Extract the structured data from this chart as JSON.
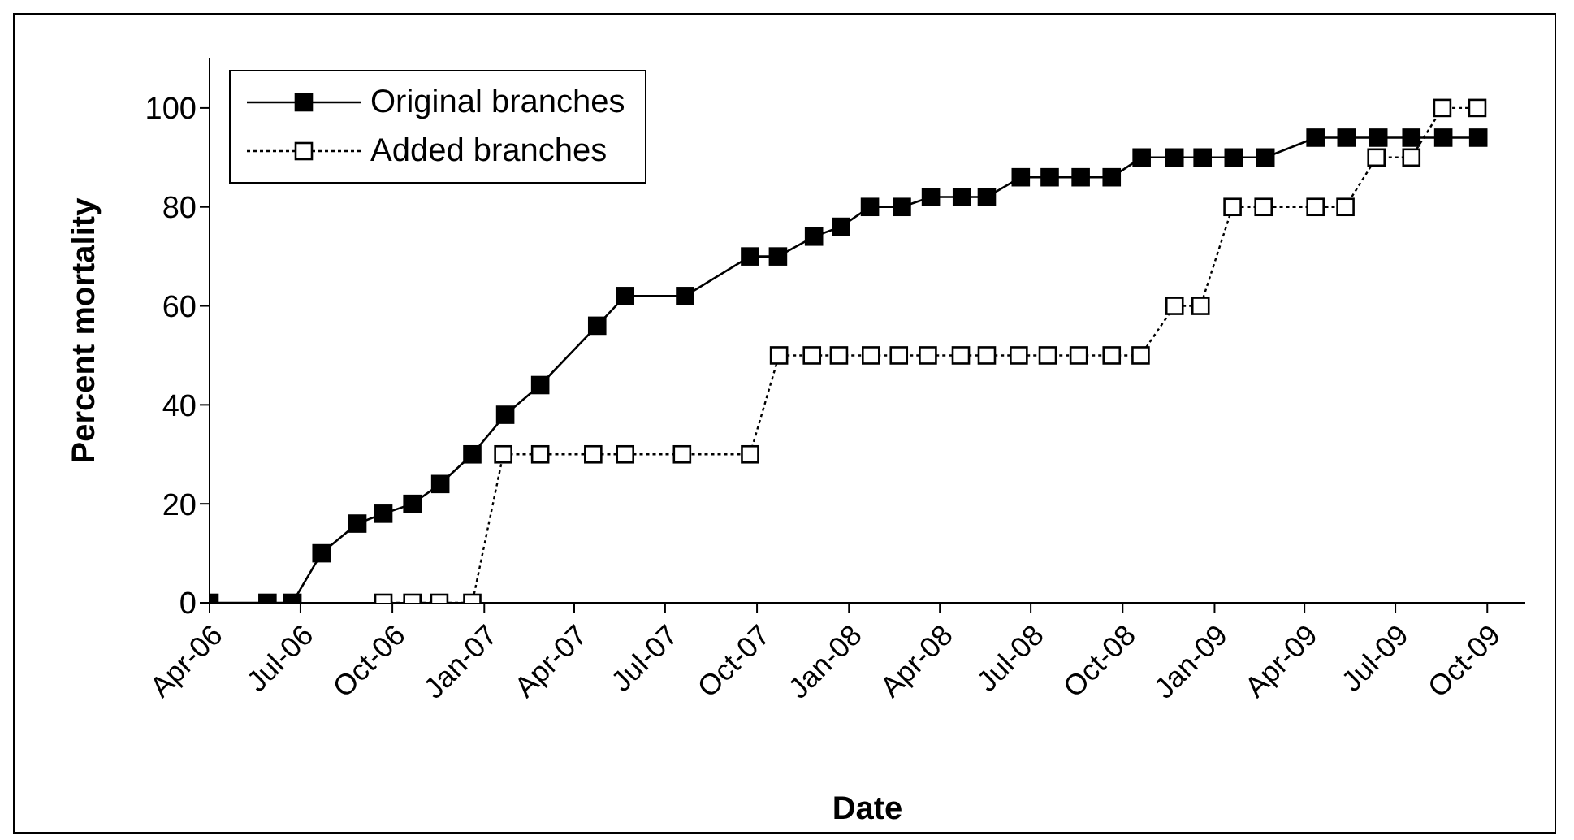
{
  "chart_data": {
    "type": "line",
    "xlabel": "Date",
    "ylabel": "Percent mortality",
    "xlim": [
      "2006-04",
      "2009-11-08"
    ],
    "ylim": [
      0,
      110
    ],
    "yticks": [
      0,
      20,
      40,
      60,
      80,
      100
    ],
    "xticks": [
      {
        "value": "2006-04",
        "label": "Apr-06"
      },
      {
        "value": "2006-07",
        "label": "Jul-06"
      },
      {
        "value": "2006-10",
        "label": "Oct-06"
      },
      {
        "value": "2007-01",
        "label": "Jan-07"
      },
      {
        "value": "2007-04",
        "label": "Apr-07"
      },
      {
        "value": "2007-07",
        "label": "Jul-07"
      },
      {
        "value": "2007-10",
        "label": "Oct-07"
      },
      {
        "value": "2008-01",
        "label": "Jan-08"
      },
      {
        "value": "2008-04",
        "label": "Apr-08"
      },
      {
        "value": "2008-07",
        "label": "Jul-08"
      },
      {
        "value": "2008-10",
        "label": "Oct-08"
      },
      {
        "value": "2009-01",
        "label": "Jan-09"
      },
      {
        "value": "2009-04",
        "label": "Apr-09"
      },
      {
        "value": "2009-07",
        "label": "Jul-09"
      },
      {
        "value": "2009-10",
        "label": "Oct-09"
      }
    ],
    "grid": false,
    "legend": "top left",
    "marker": "square",
    "series": [
      {
        "name": "Original branches",
        "color": "#000000",
        "line_style": "solid",
        "x": [
          "2006-04-01",
          "2006-05-29",
          "2006-06-23",
          "2006-07-22",
          "2006-08-27",
          "2006-09-22",
          "2006-10-21",
          "2006-11-18",
          "2006-12-20",
          "2007-01-22",
          "2007-02-26",
          "2007-04-24",
          "2007-05-22",
          "2007-07-21",
          "2007-09-24",
          "2007-10-22",
          "2007-11-27",
          "2007-12-24",
          "2008-01-22",
          "2008-02-23",
          "2008-03-23",
          "2008-04-23",
          "2008-05-18",
          "2008-06-21",
          "2008-07-20",
          "2008-08-20",
          "2008-09-20",
          "2008-10-20",
          "2008-11-22",
          "2008-12-20",
          "2009-01-20",
          "2009-02-21",
          "2009-04-12",
          "2009-05-13",
          "2009-06-14",
          "2009-07-17",
          "2009-08-18",
          "2009-09-22"
        ],
        "values": [
          0,
          0,
          0,
          10,
          16,
          18,
          20,
          24,
          30,
          38,
          44,
          56,
          62,
          62,
          70,
          70,
          74,
          76,
          80,
          80,
          82,
          82,
          82,
          86,
          86,
          86,
          86,
          90,
          90,
          90,
          90,
          90,
          94,
          94,
          94,
          94,
          94,
          94
        ]
      },
      {
        "name": "Added branches",
        "color": "#000000",
        "line_style": "dotted",
        "x": [
          "2006-09-22",
          "2006-10-21",
          "2006-11-17",
          "2006-12-20",
          "2007-01-20",
          "2007-02-26",
          "2007-04-20",
          "2007-05-22",
          "2007-07-18",
          "2007-09-24",
          "2007-10-23",
          "2007-11-25",
          "2007-12-22",
          "2008-01-23",
          "2008-02-20",
          "2008-03-20",
          "2008-04-22",
          "2008-05-18",
          "2008-06-19",
          "2008-07-18",
          "2008-08-18",
          "2008-09-20",
          "2008-10-19",
          "2008-11-22",
          "2008-12-18",
          "2009-01-19",
          "2009-02-19",
          "2009-04-12",
          "2009-05-12",
          "2009-06-12",
          "2009-07-17",
          "2009-08-17",
          "2009-09-21"
        ],
        "values": [
          0,
          0,
          0,
          0,
          30,
          30,
          30,
          30,
          30,
          30,
          50,
          50,
          50,
          50,
          50,
          50,
          50,
          50,
          50,
          50,
          50,
          50,
          50,
          60,
          60,
          80,
          80,
          80,
          80,
          90,
          90,
          100,
          100
        ]
      }
    ]
  }
}
